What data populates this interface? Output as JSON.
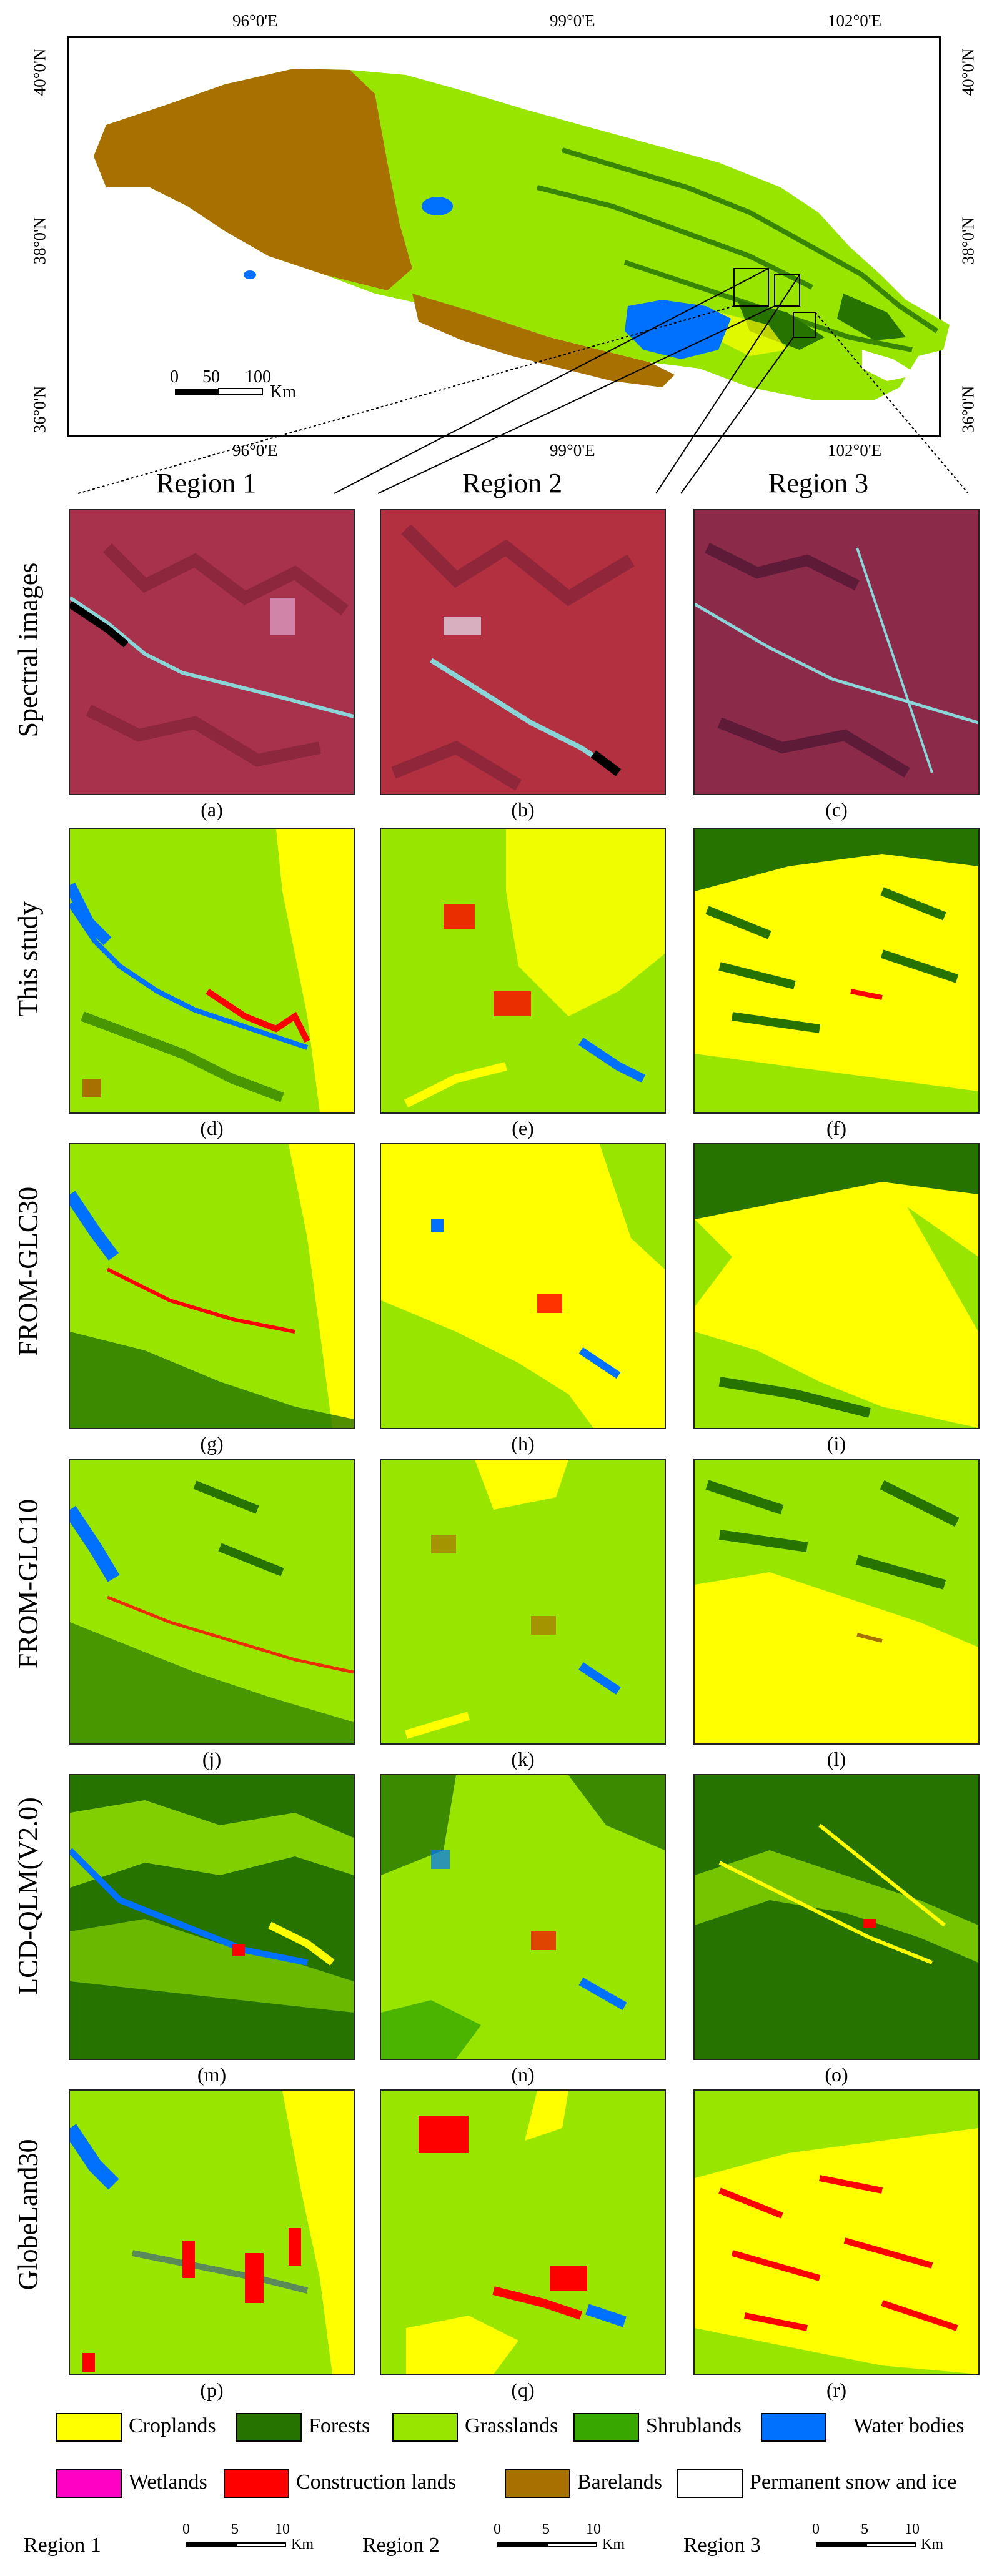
{
  "overview_map": {
    "lon_labels": [
      "96°0'E",
      "99°0'E",
      "102°0'E"
    ],
    "lat_labels": [
      "40°0'N",
      "38°0'N",
      "36°0'N"
    ],
    "scale_numbers": [
      "0",
      "50",
      "100"
    ],
    "scale_unit": "Km"
  },
  "region_titles": [
    "Region 1",
    "Region 2",
    "Region 3"
  ],
  "rows": [
    {
      "label": "Spectral images",
      "panels": [
        "(a)",
        "(b)",
        "(c)"
      ]
    },
    {
      "label": "This study",
      "panels": [
        "(d)",
        "(e)",
        "(f)"
      ]
    },
    {
      "label": "FROM-GLC30",
      "panels": [
        "(g)",
        "(h)",
        "(i)"
      ]
    },
    {
      "label": "FROM-GLC10",
      "panels": [
        "(j)",
        "(k)",
        "(l)"
      ]
    },
    {
      "label": "LCD-QLM(V2.0)",
      "panels": [
        "(m)",
        "(n)",
        "(o)"
      ]
    },
    {
      "label": "GlobeLand30",
      "panels": [
        "(p)",
        "(q)",
        "(r)"
      ]
    }
  ],
  "legend": [
    {
      "label": "Croplands",
      "color": "#ffff00"
    },
    {
      "label": "Forests",
      "color": "#267300"
    },
    {
      "label": "Grasslands",
      "color": "#98e600"
    },
    {
      "label": "Shrublands",
      "color": "#38a800"
    },
    {
      "label": "Water bodies",
      "color": "#0070ff"
    },
    {
      "label": "Wetlands",
      "color": "#ff00c5"
    },
    {
      "label": "Construction lands",
      "color": "#ff0000"
    },
    {
      "label": "Barelands",
      "color": "#a87000"
    },
    {
      "label": "Permanent snow and ice",
      "color": "#ffffff"
    }
  ],
  "scale_bars": [
    {
      "label": "Region 1",
      "numbers": [
        "0",
        "5",
        "10"
      ],
      "unit": "Km"
    },
    {
      "label": "Region 2",
      "numbers": [
        "0",
        "5",
        "10"
      ],
      "unit": "Km"
    },
    {
      "label": "Region 3",
      "numbers": [
        "0",
        "5",
        "10"
      ],
      "unit": "Km"
    }
  ]
}
